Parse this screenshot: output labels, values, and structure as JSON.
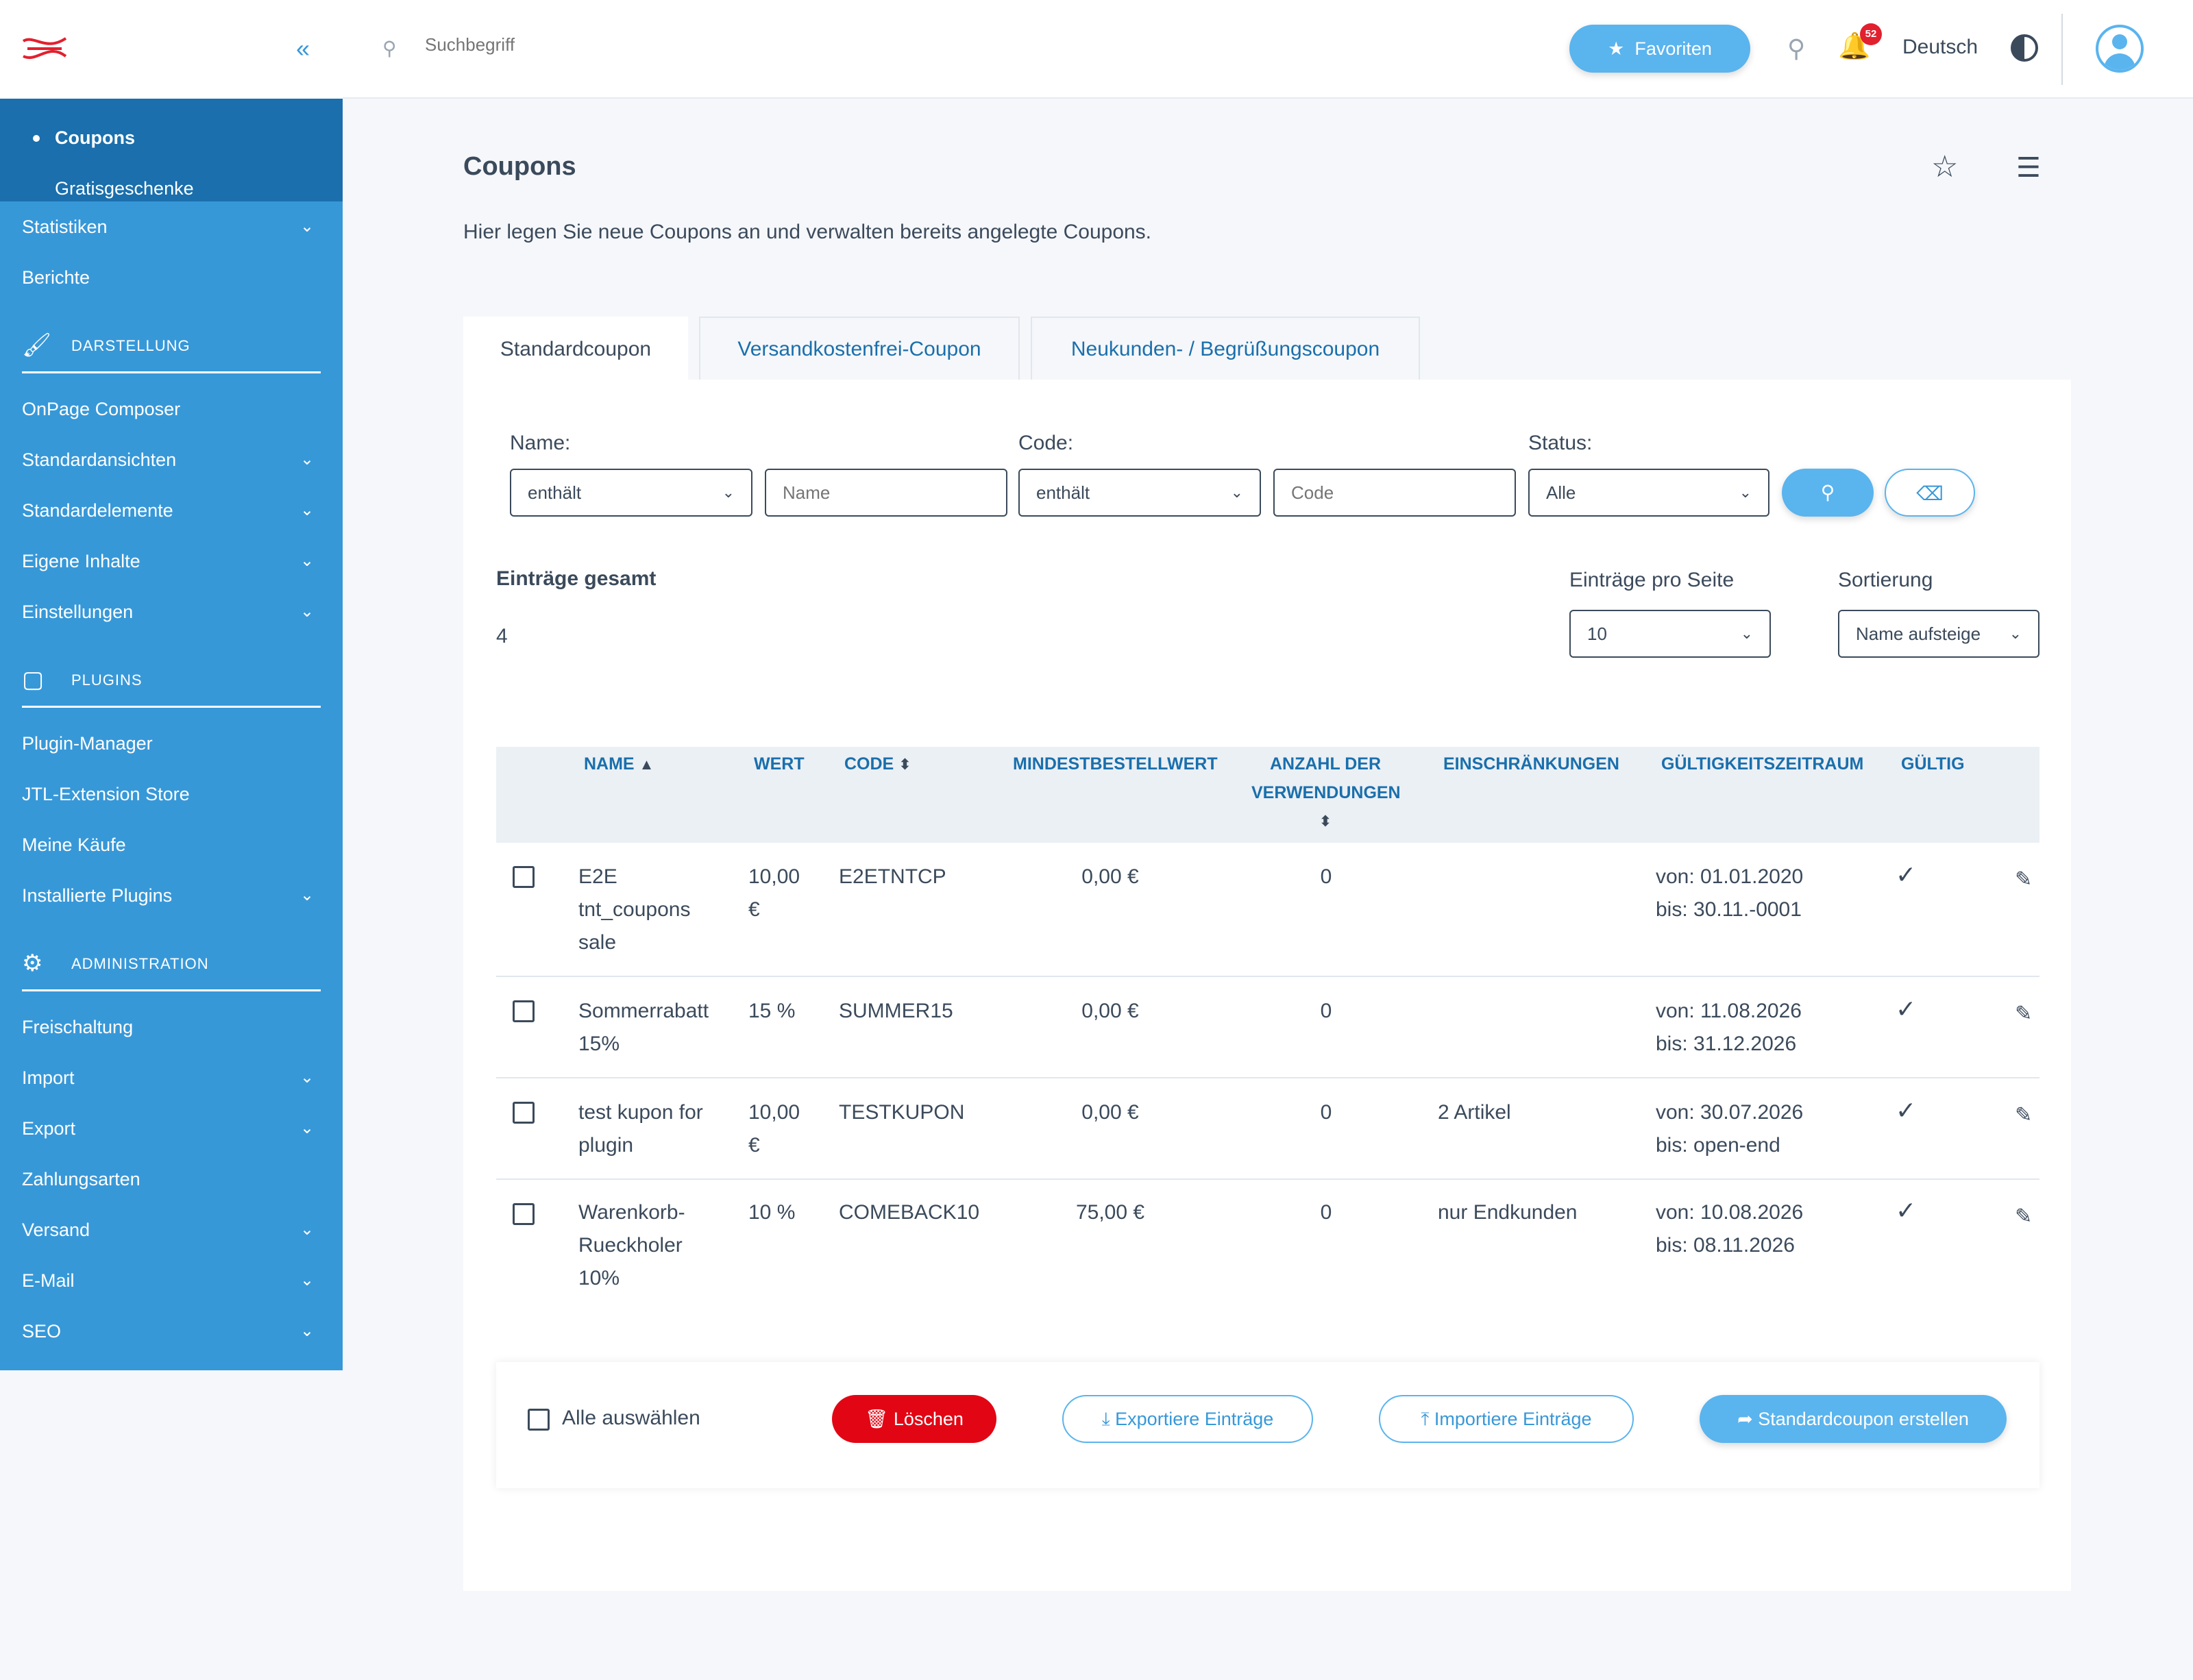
{
  "sidebar": {
    "collapse_icon": "«",
    "sub_items": [
      {
        "label": "Coupons",
        "active": true
      },
      {
        "label": "Gratisgeschenke",
        "active": false
      }
    ],
    "group1": [
      {
        "label": "Statistiken",
        "chevron": true
      },
      {
        "label": "Berichte",
        "chevron": false
      }
    ],
    "section_darstellung": "DARSTELLUNG",
    "group2": [
      {
        "label": "OnPage Composer",
        "chevron": false
      },
      {
        "label": "Standardansichten",
        "chevron": true
      },
      {
        "label": "Standardelemente",
        "chevron": true
      },
      {
        "label": "Eigene Inhalte",
        "chevron": true
      },
      {
        "label": "Einstellungen",
        "chevron": true
      }
    ],
    "section_plugins": "PLUGINS",
    "group3": [
      {
        "label": "Plugin-Manager",
        "chevron": false
      },
      {
        "label": "JTL-Extension Store",
        "chevron": false
      },
      {
        "label": "Meine Käufe",
        "chevron": false
      },
      {
        "label": "Installierte Plugins",
        "chevron": true
      }
    ],
    "section_admin": "ADMINISTRATION",
    "group4": [
      {
        "label": "Freischaltung",
        "chevron": false
      },
      {
        "label": "Import",
        "chevron": true
      },
      {
        "label": "Export",
        "chevron": true
      },
      {
        "label": "Zahlungsarten",
        "chevron": false
      },
      {
        "label": "Versand",
        "chevron": true
      },
      {
        "label": "E-Mail",
        "chevron": true
      },
      {
        "label": "SEO",
        "chevron": true
      }
    ]
  },
  "topbar": {
    "search_placeholder": "Suchbegriff",
    "favorites_label": "Favoriten",
    "notification_count": "52",
    "language": "Deutsch"
  },
  "page": {
    "title": "Coupons",
    "description": "Hier legen Sie neue Coupons an und verwalten bereits angelegte Coupons."
  },
  "tabs": [
    "Standardcoupon",
    "Versandkostenfrei-Coupon",
    "Neukunden- / Begrüßungscoupon"
  ],
  "filters": {
    "name_label": "Name:",
    "name_operator": "enthält",
    "name_placeholder": "Name",
    "code_label": "Code:",
    "code_operator": "enthält",
    "code_placeholder": "Code",
    "status_label": "Status:",
    "status_value": "Alle"
  },
  "summary": {
    "total_label": "Einträge gesamt",
    "total_value": "4",
    "per_page_label": "Einträge pro Seite",
    "per_page_value": "10",
    "sort_label": "Sortierung",
    "sort_value": "Name aufsteige"
  },
  "table": {
    "headers": {
      "name": "NAME",
      "wert": "WERT",
      "code": "CODE",
      "mbw": "MINDESTBESTELLWERT",
      "anzahl1": "ANZAHL DER",
      "anzahl2": "VERWENDUNGEN",
      "einschr": "EINSCHRÄNKUNGEN",
      "gzr": "GÜLTIGKEITSZEITRAUM",
      "gueltig": "GÜLTIG"
    },
    "rows": [
      {
        "name": [
          "E2E",
          "tnt_coupons",
          "sale"
        ],
        "wert": [
          "10,00",
          "€"
        ],
        "code": "E2ETNTCP",
        "mbw": "0,00 €",
        "anzahl": "0",
        "einschr": "",
        "von": "von: 01.01.2020",
        "bis": "bis: 30.11.-0001"
      },
      {
        "name": [
          "Sommerrabatt",
          "15%"
        ],
        "wert": [
          "15 %"
        ],
        "code": "SUMMER15",
        "mbw": "0,00 €",
        "anzahl": "0",
        "einschr": "",
        "von": "von: 11.08.2026",
        "bis": "bis: 31.12.2026"
      },
      {
        "name": [
          "test kupon for",
          "plugin"
        ],
        "wert": [
          "10,00",
          "€"
        ],
        "code": "TESTKUPON",
        "mbw": "0,00 €",
        "anzahl": "0",
        "einschr": "2 Artikel",
        "von": "von: 30.07.2026",
        "bis": "bis: open-end"
      },
      {
        "name": [
          "Warenkorb-",
          "Rueckholer",
          "10%"
        ],
        "wert": [
          "10 %"
        ],
        "code": "COMEBACK10",
        "mbw": "75,00 €",
        "anzahl": "0",
        "einschr": "nur Endkunden",
        "von": "von: 10.08.2026",
        "bis": "bis: 08.11.2026"
      }
    ]
  },
  "footer": {
    "select_all": "Alle auswählen",
    "delete": "Löschen",
    "export": "Exportiere Einträge",
    "import": "Importiere Einträge",
    "create": "Standardcoupon erstellen"
  }
}
